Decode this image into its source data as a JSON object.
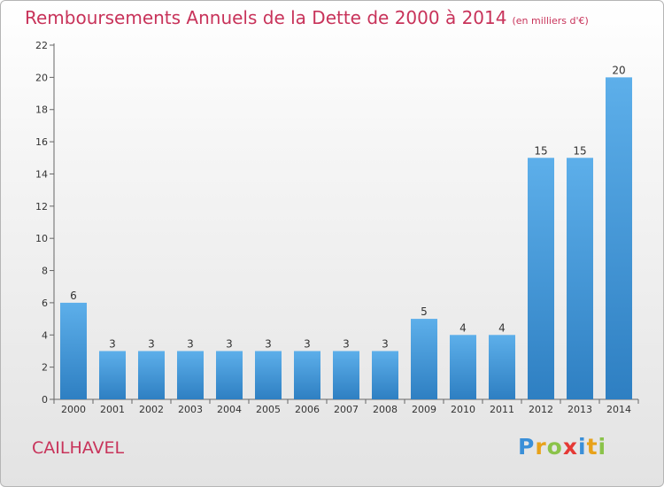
{
  "header": {
    "title": "Remboursements Annuels de la Dette de 2000 à 2014",
    "unit": "(en milliers d'€)"
  },
  "footer": {
    "commune": "CAILHAVEL",
    "logo_letters": [
      "P",
      "r",
      "o",
      "x",
      "i",
      "t",
      "i"
    ],
    "logo_colors": [
      "#3a8fd8",
      "#e8a21a",
      "#8bc34a",
      "#e53935",
      "#3a8fd8",
      "#e8a21a",
      "#8bc34a"
    ]
  },
  "colors": {
    "title": "#c8335a",
    "bar_top": "#5dafea",
    "bar_bottom": "#2e7fc2"
  },
  "chart_data": {
    "type": "bar",
    "categories": [
      "2000",
      "2001",
      "2002",
      "2003",
      "2004",
      "2005",
      "2006",
      "2007",
      "2008",
      "2009",
      "2010",
      "2011",
      "2012",
      "2013",
      "2014"
    ],
    "values": [
      6,
      3,
      3,
      3,
      3,
      3,
      3,
      3,
      3,
      5,
      4,
      4,
      15,
      15,
      20
    ],
    "ylim": [
      0,
      22
    ],
    "yticks": [
      0,
      2,
      4,
      6,
      8,
      10,
      12,
      14,
      16,
      18,
      20,
      22
    ],
    "grid": false,
    "legend": "none"
  }
}
